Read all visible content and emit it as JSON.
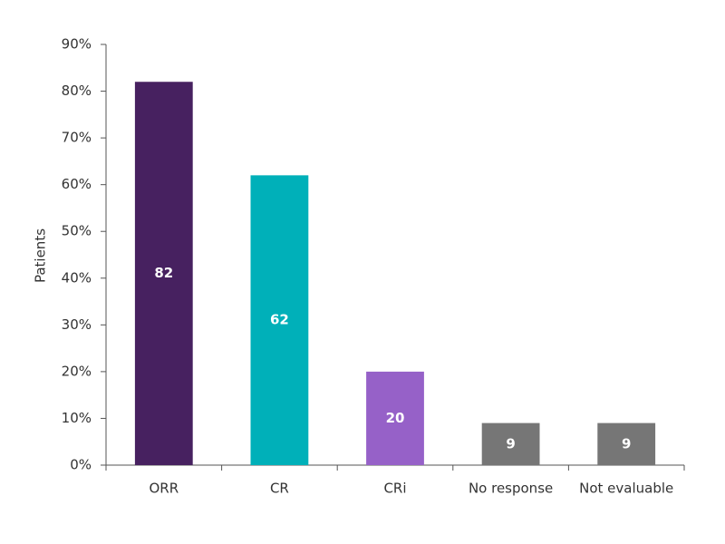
{
  "chart_data": {
    "type": "bar",
    "ylabel": "Patients",
    "categories": [
      "ORR",
      "CR",
      "CRi",
      "No response",
      "Not evaluable"
    ],
    "values": [
      82,
      62,
      20,
      9,
      9
    ],
    "colors": [
      "#472160",
      "#00b0b9",
      "#9661c8",
      "#767676",
      "#767676"
    ],
    "ylim": [
      0,
      90
    ],
    "yticks": [
      {
        "value": 0,
        "label": "0%"
      },
      {
        "value": 10,
        "label": "10%"
      },
      {
        "value": 20,
        "label": "20%"
      },
      {
        "value": 30,
        "label": "30%"
      },
      {
        "value": 40,
        "label": "40%"
      },
      {
        "value": 50,
        "label": "50%"
      },
      {
        "value": 60,
        "label": "60%"
      },
      {
        "value": 70,
        "label": "70%"
      },
      {
        "value": 80,
        "label": "80%"
      },
      {
        "value": 90,
        "label": "90%"
      }
    ],
    "grid": false
  }
}
